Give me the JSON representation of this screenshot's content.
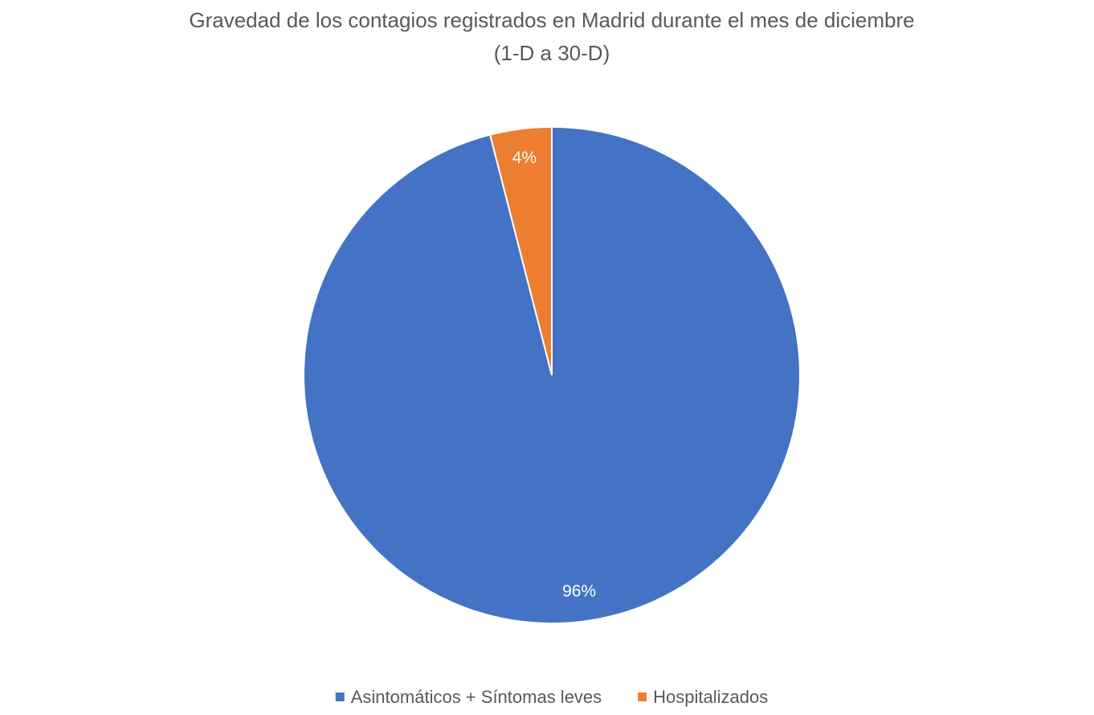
{
  "chart_data": {
    "type": "pie",
    "title": "Gravedad de los contagios registrados en Madrid durante el mes de diciembre",
    "subtitle": "(1-D a 30-D)",
    "categories": [
      "Asintomáticos + Síntomas leves",
      "Hospitalizados"
    ],
    "values": [
      96,
      4
    ],
    "value_labels": [
      "96%",
      "4%"
    ],
    "colors": [
      "#4472c4",
      "#ed7d31"
    ],
    "legend": "bottom"
  }
}
